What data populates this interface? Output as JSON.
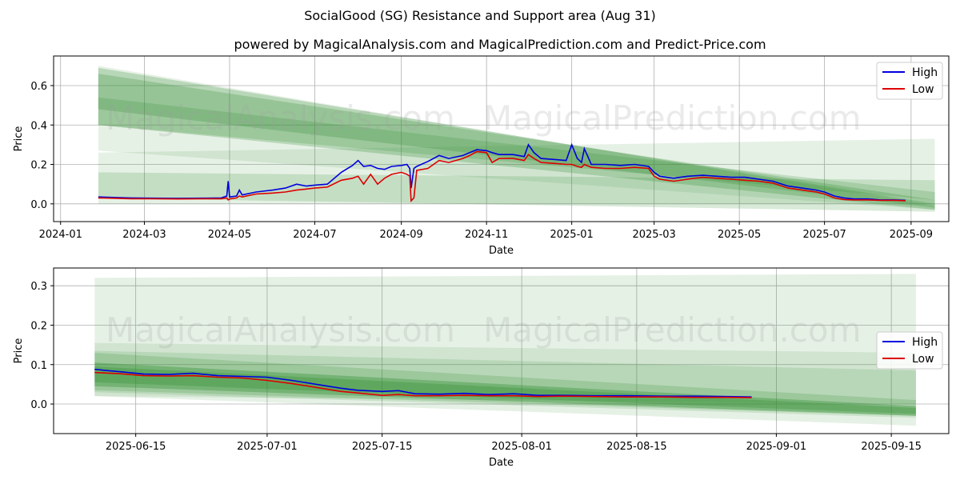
{
  "title": "SocialGood (SG) Resistance and Support area (Aug 31)",
  "subtitle": "powered by MagicalAnalysis.com and MagicalPrediction.com and Predict-Price.com",
  "watermarks": [
    "MagicalAnalysis.com",
    "MagicalPrediction.com"
  ],
  "colors": {
    "high": "#0000dd",
    "low": "#dd0000",
    "band": "#2e8b2e",
    "grid": "#b0b0b0"
  },
  "chart_data": [
    {
      "type": "line",
      "xlabel": "Date",
      "ylabel": "Price",
      "xlim": [
        "2023-12-27",
        "2025-09-28"
      ],
      "ylim": [
        -0.09,
        0.75
      ],
      "xticks": [
        "2024-01",
        "2024-03",
        "2024-05",
        "2024-07",
        "2024-09",
        "2024-11",
        "2025-01",
        "2025-03",
        "2025-05",
        "2025-07",
        "2025-09"
      ],
      "xtick_dates": [
        "2024-01-01",
        "2024-03-01",
        "2024-05-01",
        "2024-07-01",
        "2024-09-01",
        "2024-11-01",
        "2025-01-01",
        "2025-03-01",
        "2025-05-01",
        "2025-07-01",
        "2025-09-01"
      ],
      "yticks": [
        0.0,
        0.2,
        0.4,
        0.6
      ],
      "ytick_labels": [
        "0.0",
        "0.2",
        "0.4",
        "0.6"
      ],
      "grid": true,
      "legend": "top-right",
      "bands": [
        {
          "x": [
            "2024-01-28",
            "2025-09-18"
          ],
          "upper": [
            0.7,
            -0.01
          ],
          "lower": [
            0.27,
            -0.03
          ],
          "alpha": 0.12
        },
        {
          "x": [
            "2024-01-28",
            "2025-09-18"
          ],
          "upper": [
            0.69,
            0.0
          ],
          "lower": [
            0.4,
            -0.03
          ],
          "alpha": 0.25
        },
        {
          "x": [
            "2024-01-28",
            "2025-09-18"
          ],
          "upper": [
            0.66,
            0.02
          ],
          "lower": [
            0.48,
            -0.02
          ],
          "alpha": 0.25
        },
        {
          "x": [
            "2024-01-28",
            "2025-09-18"
          ],
          "upper": [
            0.54,
            0.06
          ],
          "lower": [
            0.4,
            0.02
          ],
          "alpha": 0.2
        },
        {
          "x": [
            "2024-01-28",
            "2025-09-18"
          ],
          "upper": [
            0.26,
            0.33
          ],
          "lower": [
            0.0,
            0.0
          ],
          "alpha": 0.12
        },
        {
          "x": [
            "2024-01-28",
            "2025-09-18"
          ],
          "upper": [
            0.16,
            0.12
          ],
          "lower": [
            0.03,
            -0.04
          ],
          "alpha": 0.18
        }
      ],
      "series": [
        {
          "name": "High",
          "x": [
            "2024-01-28",
            "2024-02-10",
            "2024-02-20",
            "2024-03-05",
            "2024-03-25",
            "2024-04-15",
            "2024-04-25",
            "2024-04-29",
            "2024-04-30",
            "2024-05-01",
            "2024-05-06",
            "2024-05-08",
            "2024-05-10",
            "2024-05-20",
            "2024-06-01",
            "2024-06-10",
            "2024-06-18",
            "2024-06-25",
            "2024-07-01",
            "2024-07-10",
            "2024-07-20",
            "2024-07-28",
            "2024-08-01",
            "2024-08-05",
            "2024-08-10",
            "2024-08-15",
            "2024-08-20",
            "2024-08-25",
            "2024-09-01",
            "2024-09-05",
            "2024-09-07",
            "2024-09-08",
            "2024-09-10",
            "2024-09-12",
            "2024-09-20",
            "2024-09-28",
            "2024-10-05",
            "2024-10-15",
            "2024-10-20",
            "2024-10-25",
            "2024-11-01",
            "2024-11-05",
            "2024-11-10",
            "2024-11-20",
            "2024-11-28",
            "2024-12-01",
            "2024-12-05",
            "2024-12-10",
            "2024-12-20",
            "2024-12-28",
            "2025-01-01",
            "2025-01-05",
            "2025-01-08",
            "2025-01-10",
            "2025-01-15",
            "2025-01-25",
            "2025-02-05",
            "2025-02-15",
            "2025-02-25",
            "2025-03-01",
            "2025-03-05",
            "2025-03-15",
            "2025-03-25",
            "2025-04-05",
            "2025-04-15",
            "2025-04-25",
            "2025-05-05",
            "2025-05-15",
            "2025-05-25",
            "2025-06-05",
            "2025-06-15",
            "2025-06-25",
            "2025-07-01",
            "2025-07-08",
            "2025-07-15",
            "2025-07-22",
            "2025-08-01",
            "2025-08-10",
            "2025-08-20",
            "2025-08-28"
          ],
          "y": [
            0.035,
            0.032,
            0.03,
            0.029,
            0.028,
            0.029,
            0.03,
            0.04,
            0.115,
            0.035,
            0.04,
            0.07,
            0.045,
            0.06,
            0.07,
            0.08,
            0.1,
            0.09,
            0.095,
            0.1,
            0.16,
            0.195,
            0.22,
            0.19,
            0.195,
            0.18,
            0.175,
            0.19,
            0.195,
            0.2,
            0.18,
            0.08,
            0.18,
            0.19,
            0.215,
            0.245,
            0.23,
            0.245,
            0.26,
            0.275,
            0.27,
            0.26,
            0.25,
            0.25,
            0.24,
            0.3,
            0.26,
            0.23,
            0.225,
            0.22,
            0.3,
            0.23,
            0.21,
            0.28,
            0.2,
            0.2,
            0.195,
            0.2,
            0.19,
            0.16,
            0.14,
            0.13,
            0.14,
            0.145,
            0.14,
            0.135,
            0.135,
            0.125,
            0.115,
            0.09,
            0.08,
            0.07,
            0.06,
            0.04,
            0.03,
            0.025,
            0.025,
            0.02,
            0.02,
            0.018
          ]
        },
        {
          "name": "Low",
          "x": [
            "2024-01-28",
            "2024-02-10",
            "2024-02-20",
            "2024-03-05",
            "2024-03-25",
            "2024-04-15",
            "2024-04-25",
            "2024-04-29",
            "2024-04-30",
            "2024-05-01",
            "2024-05-06",
            "2024-05-08",
            "2024-05-10",
            "2024-05-20",
            "2024-06-01",
            "2024-06-10",
            "2024-06-18",
            "2024-06-25",
            "2024-07-01",
            "2024-07-10",
            "2024-07-20",
            "2024-07-28",
            "2024-08-01",
            "2024-08-05",
            "2024-08-10",
            "2024-08-15",
            "2024-08-20",
            "2024-08-25",
            "2024-09-01",
            "2024-09-05",
            "2024-09-07",
            "2024-09-08",
            "2024-09-10",
            "2024-09-12",
            "2024-09-20",
            "2024-09-28",
            "2024-10-05",
            "2024-10-15",
            "2024-10-20",
            "2024-10-25",
            "2024-11-01",
            "2024-11-05",
            "2024-11-10",
            "2024-11-20",
            "2024-11-28",
            "2024-12-01",
            "2024-12-05",
            "2024-12-10",
            "2024-12-20",
            "2024-12-28",
            "2025-01-01",
            "2025-01-05",
            "2025-01-08",
            "2025-01-10",
            "2025-01-15",
            "2025-01-25",
            "2025-02-05",
            "2025-02-15",
            "2025-02-25",
            "2025-03-01",
            "2025-03-05",
            "2025-03-15",
            "2025-03-25",
            "2025-04-05",
            "2025-04-15",
            "2025-04-25",
            "2025-05-05",
            "2025-05-15",
            "2025-05-25",
            "2025-06-05",
            "2025-06-15",
            "2025-06-25",
            "2025-07-01",
            "2025-07-08",
            "2025-07-15",
            "2025-07-22",
            "2025-08-01",
            "2025-08-10",
            "2025-08-20",
            "2025-08-28"
          ],
          "y": [
            0.03,
            0.028,
            0.026,
            0.026,
            0.025,
            0.026,
            0.026,
            0.03,
            0.02,
            0.025,
            0.03,
            0.04,
            0.035,
            0.05,
            0.055,
            0.06,
            0.07,
            0.075,
            0.08,
            0.085,
            0.12,
            0.13,
            0.14,
            0.1,
            0.15,
            0.1,
            0.13,
            0.15,
            0.16,
            0.15,
            0.14,
            0.015,
            0.03,
            0.17,
            0.18,
            0.22,
            0.21,
            0.23,
            0.245,
            0.265,
            0.26,
            0.21,
            0.23,
            0.23,
            0.22,
            0.25,
            0.23,
            0.21,
            0.205,
            0.2,
            0.2,
            0.19,
            0.185,
            0.2,
            0.185,
            0.18,
            0.18,
            0.185,
            0.18,
            0.14,
            0.125,
            0.115,
            0.125,
            0.135,
            0.13,
            0.125,
            0.12,
            0.115,
            0.105,
            0.08,
            0.07,
            0.06,
            0.05,
            0.03,
            0.022,
            0.02,
            0.02,
            0.018,
            0.018,
            0.016
          ]
        }
      ]
    },
    {
      "type": "line",
      "xlabel": "Date",
      "ylabel": "Price",
      "xlim": [
        "2025-06-05",
        "2025-09-22"
      ],
      "ylim": [
        -0.075,
        0.345
      ],
      "xticks": [
        "2025-06-15",
        "2025-07-01",
        "2025-07-15",
        "2025-08-01",
        "2025-08-15",
        "2025-09-01",
        "2025-09-15"
      ],
      "xtick_dates": [
        "2025-06-15",
        "2025-07-01",
        "2025-07-15",
        "2025-08-01",
        "2025-08-15",
        "2025-09-01",
        "2025-09-15"
      ],
      "yticks": [
        0.0,
        0.1,
        0.2,
        0.3
      ],
      "ytick_labels": [
        "0.0",
        "0.1",
        "0.2",
        "0.3"
      ],
      "grid": true,
      "legend": "center-right",
      "bands": [
        {
          "x": [
            "2025-06-10",
            "2025-09-18"
          ],
          "upper": [
            0.32,
            0.33
          ],
          "lower": [
            0.02,
            0.0
          ],
          "alpha": 0.12
        },
        {
          "x": [
            "2025-06-10",
            "2025-09-18"
          ],
          "upper": [
            0.155,
            0.13
          ],
          "lower": [
            0.02,
            -0.055
          ],
          "alpha": 0.12
        },
        {
          "x": [
            "2025-06-10",
            "2025-09-18"
          ],
          "upper": [
            0.135,
            0.085
          ],
          "lower": [
            0.03,
            -0.035
          ],
          "alpha": 0.15
        },
        {
          "x": [
            "2025-06-10",
            "2025-09-18"
          ],
          "upper": [
            0.13,
            0.01
          ],
          "lower": [
            0.035,
            -0.03
          ],
          "alpha": 0.2
        },
        {
          "x": [
            "2025-06-10",
            "2025-09-18"
          ],
          "upper": [
            0.105,
            -0.005
          ],
          "lower": [
            0.045,
            -0.03
          ],
          "alpha": 0.35
        },
        {
          "x": [
            "2025-06-10",
            "2025-09-18"
          ],
          "upper": [
            0.095,
            -0.01
          ],
          "lower": [
            0.055,
            -0.025
          ],
          "alpha": 0.3
        }
      ],
      "series": [
        {
          "name": "High",
          "x": [
            "2025-06-10",
            "2025-06-13",
            "2025-06-16",
            "2025-06-19",
            "2025-06-22",
            "2025-06-25",
            "2025-06-28",
            "2025-07-01",
            "2025-07-04",
            "2025-07-07",
            "2025-07-10",
            "2025-07-12",
            "2025-07-15",
            "2025-07-17",
            "2025-07-19",
            "2025-07-22",
            "2025-07-25",
            "2025-07-28",
            "2025-07-31",
            "2025-08-03",
            "2025-08-06",
            "2025-08-10",
            "2025-08-14",
            "2025-08-18",
            "2025-08-22",
            "2025-08-26",
            "2025-08-29"
          ],
          "y": [
            0.088,
            0.082,
            0.076,
            0.075,
            0.078,
            0.072,
            0.07,
            0.068,
            0.06,
            0.05,
            0.04,
            0.035,
            0.032,
            0.034,
            0.026,
            0.025,
            0.027,
            0.024,
            0.026,
            0.022,
            0.022,
            0.021,
            0.021,
            0.02,
            0.02,
            0.019,
            0.018
          ]
        },
        {
          "name": "Low",
          "x": [
            "2025-06-10",
            "2025-06-13",
            "2025-06-16",
            "2025-06-19",
            "2025-06-22",
            "2025-06-25",
            "2025-06-28",
            "2025-07-01",
            "2025-07-04",
            "2025-07-07",
            "2025-07-10",
            "2025-07-12",
            "2025-07-15",
            "2025-07-17",
            "2025-07-19",
            "2025-07-22",
            "2025-07-25",
            "2025-07-28",
            "2025-07-31",
            "2025-08-03",
            "2025-08-06",
            "2025-08-10",
            "2025-08-14",
            "2025-08-18",
            "2025-08-22",
            "2025-08-26",
            "2025-08-29"
          ],
          "y": [
            0.08,
            0.077,
            0.072,
            0.071,
            0.072,
            0.068,
            0.066,
            0.06,
            0.052,
            0.042,
            0.032,
            0.028,
            0.022,
            0.024,
            0.021,
            0.021,
            0.022,
            0.021,
            0.021,
            0.019,
            0.02,
            0.019,
            0.018,
            0.018,
            0.017,
            0.017,
            0.016
          ]
        }
      ]
    }
  ]
}
